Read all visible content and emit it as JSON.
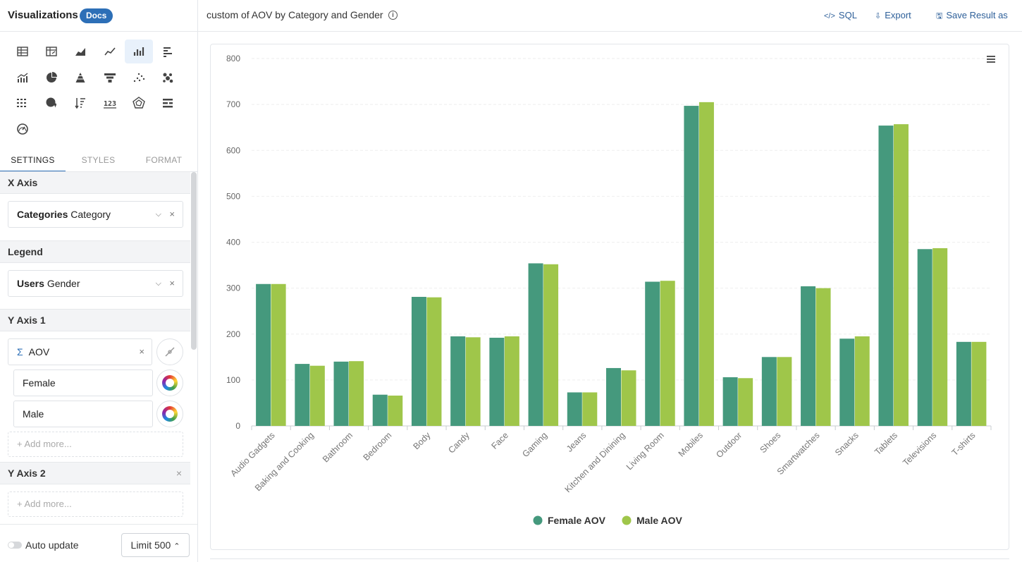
{
  "sidebar": {
    "title": "Visualizations",
    "docs_badge": "Docs",
    "viz_icons": [
      "table-icon",
      "pivot-table-icon",
      "area-chart-icon",
      "line-chart-icon",
      "bar-chart-icon",
      "horizontal-bar-icon",
      "combo-chart-icon",
      "pie-chart-icon",
      "pyramid-icon",
      "funnel-icon",
      "scatter-icon",
      "bubble-icon",
      "heatmap-icon",
      "map-icon",
      "sorted-list-icon",
      "number-icon",
      "radar-icon",
      "gantt-icon",
      "gauge-icon"
    ],
    "active_viz": "bar-chart-icon",
    "tabs": [
      "SETTINGS",
      "STYLES",
      "FORMAT"
    ],
    "active_tab": "SETTINGS",
    "x_axis": {
      "heading": "X Axis",
      "field_bold": "Categories",
      "field_name": "Category"
    },
    "legend": {
      "heading": "Legend",
      "field_bold": "Users",
      "field_name": "Gender"
    },
    "y_axis1": {
      "heading": "Y Axis 1",
      "sigma": "Σ",
      "field": "AOV",
      "series": [
        "Female",
        "Male"
      ],
      "add_more": "+ Add more..."
    },
    "y_axis2": {
      "heading": "Y Axis 2",
      "close": "×",
      "add_more": "+ Add more..."
    },
    "footer": {
      "auto_update": "Auto update",
      "limit": "Limit 500"
    }
  },
  "topbar": {
    "title": "custom of AOV by Category and Gender",
    "info": "i",
    "actions": {
      "sql": "SQL",
      "export": "Export",
      "save": "Save Result as"
    }
  },
  "colors": {
    "female": "#45997d",
    "male": "#9fc64a",
    "accent": "#2d6fb7"
  },
  "chart_data": {
    "type": "bar",
    "categories": [
      "Audio Gadgets",
      "Baking and Cooking",
      "Bathroom",
      "Bedroom",
      "Body",
      "Candy",
      "Face",
      "Gaming",
      "Jeans",
      "Kitchen and Dinining",
      "Living Room",
      "Mobiles",
      "Outdoor",
      "Shoes",
      "Smartwatches",
      "Snacks",
      "Tablets",
      "Televisions",
      "T-shirts"
    ],
    "series": [
      {
        "name": "Female AOV",
        "values": [
          309,
          135,
          140,
          68,
          281,
          195,
          192,
          354,
          73,
          126,
          314,
          697,
          106,
          150,
          304,
          190,
          654,
          385,
          183
        ]
      },
      {
        "name": "Male AOV",
        "values": [
          309,
          131,
          141,
          66,
          280,
          193,
          195,
          352,
          73,
          121,
          316,
          705,
          104,
          150,
          300,
          195,
          657,
          387,
          183
        ]
      }
    ],
    "yticks": [
      0,
      100,
      200,
      300,
      400,
      500,
      600,
      700,
      800
    ],
    "ylim": [
      0,
      800
    ],
    "grid": true,
    "legend_position": "bottom"
  }
}
